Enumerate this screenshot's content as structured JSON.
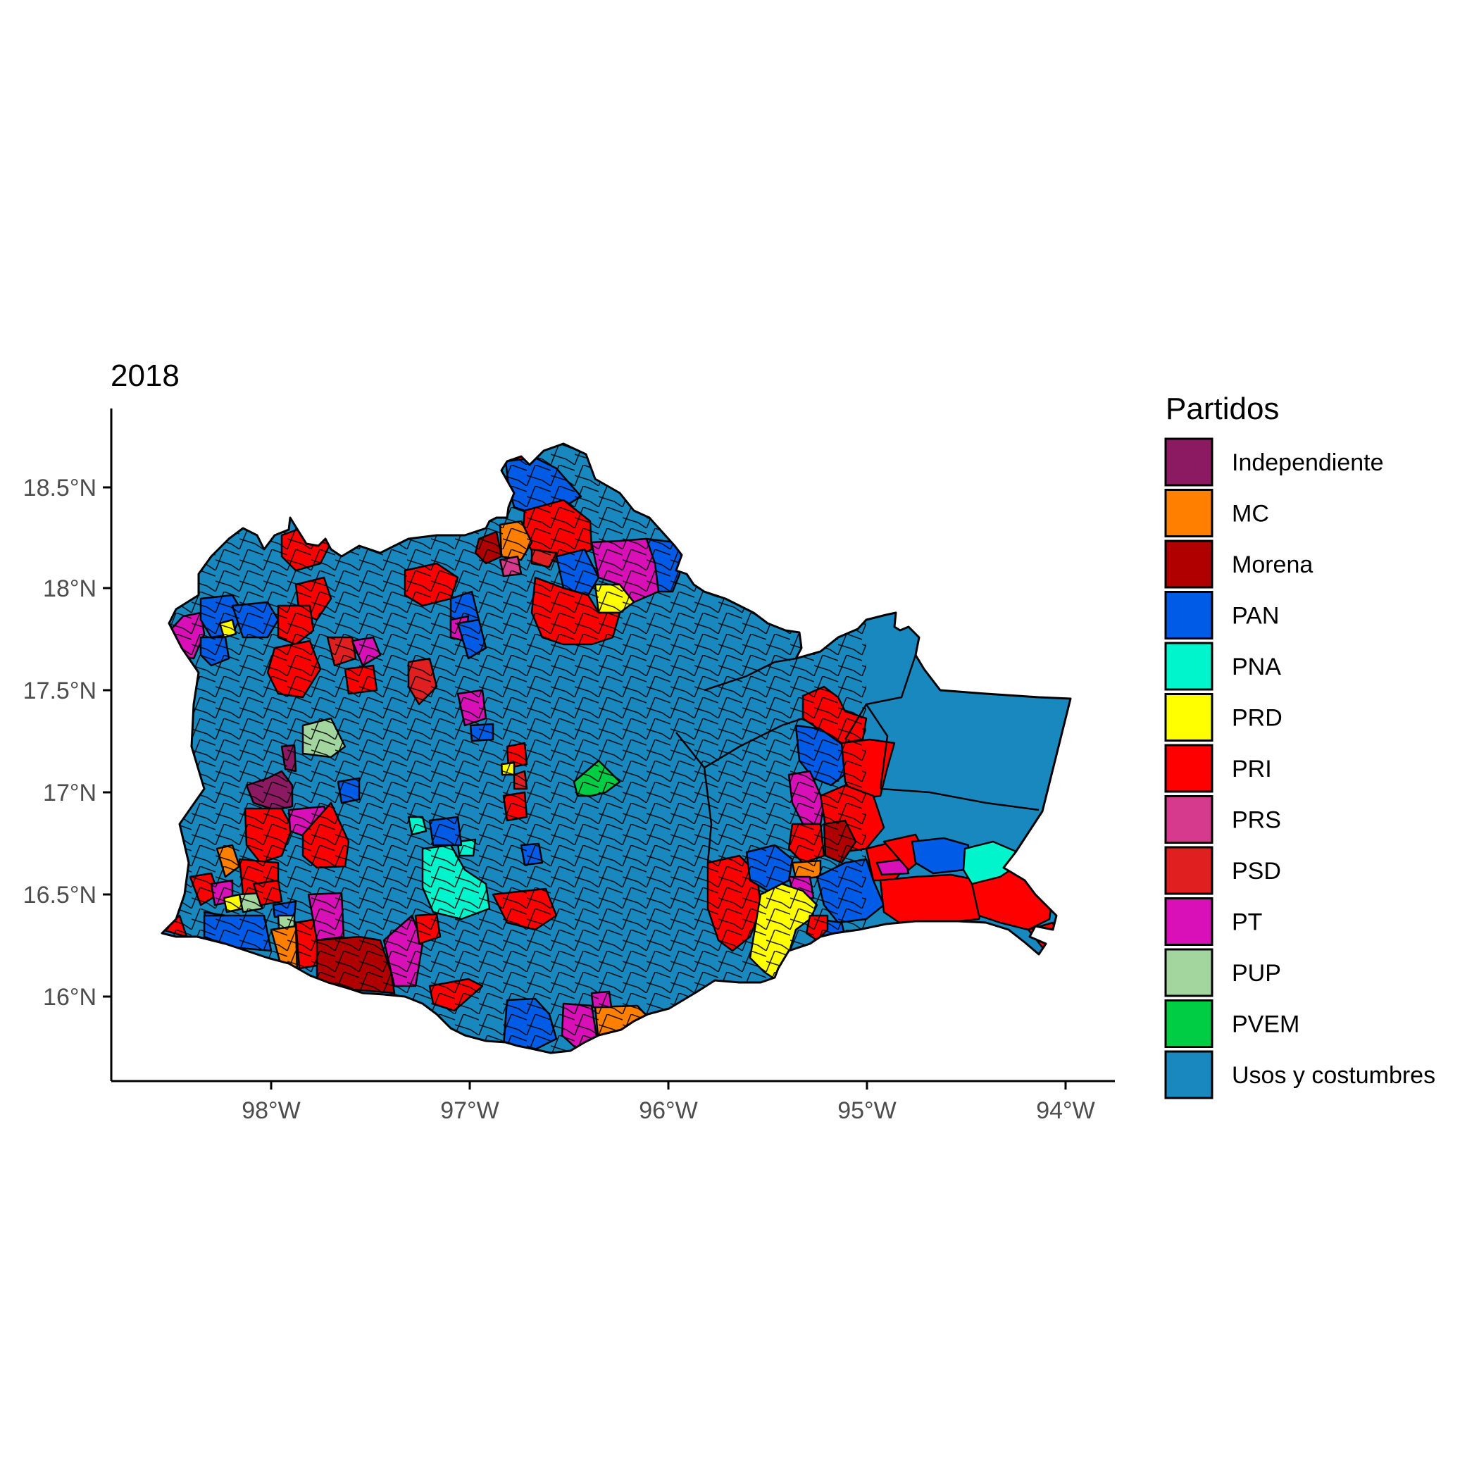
{
  "map": {
    "title": "2018",
    "x_ticks": [
      "98°W",
      "97°W",
      "96°W",
      "95°W",
      "94°W"
    ],
    "y_ticks": [
      "16°N",
      "16.5°N",
      "17°N",
      "17.5°N",
      "18°N",
      "18.5°N"
    ],
    "legend_title": "Partidos",
    "parties": [
      {
        "name": "Independiente",
        "color": "#8B1A62"
      },
      {
        "name": "MC",
        "color": "#FF8000"
      },
      {
        "name": "Morena",
        "color": "#B00000"
      },
      {
        "name": "PAN",
        "color": "#005CE6"
      },
      {
        "name": "PNA",
        "color": "#00F5CC"
      },
      {
        "name": "PRD",
        "color": "#FFFF00"
      },
      {
        "name": "PRI",
        "color": "#FF0000"
      },
      {
        "name": "PRS",
        "color": "#D63A8C"
      },
      {
        "name": "PSD",
        "color": "#E02020"
      },
      {
        "name": "PT",
        "color": "#D90FB8"
      },
      {
        "name": "PUP",
        "color": "#A3D69E"
      },
      {
        "name": "PVEM",
        "color": "#00CC44"
      },
      {
        "name": "Usos y costumbres",
        "color": "#1888BF"
      }
    ]
  }
}
